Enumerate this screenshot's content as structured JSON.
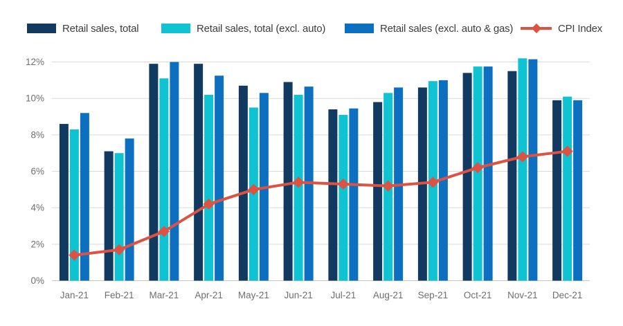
{
  "chart_data": {
    "type": "combo: grouped bar + line",
    "title": "",
    "xlabel": "",
    "ylabel": "",
    "unit": "percent",
    "grid": "horizontal",
    "legend_position": "top",
    "categories": [
      "Jan-21",
      "Feb-21",
      "Mar-21",
      "Apr-21",
      "May-21",
      "Jun-21",
      "Jul-21",
      "Aug-21",
      "Sep-21",
      "Oct-21",
      "Nov-21",
      "Dec-21"
    ],
    "series": [
      {
        "name": "Retail sales, total",
        "color": "#123a60",
        "values": [
          8.6,
          7.1,
          11.9,
          11.9,
          10.7,
          10.9,
          9.4,
          9.8,
          10.6,
          11.4,
          11.5,
          9.9
        ]
      },
      {
        "name": "Retail sales, total (excl. auto)",
        "color": "#10c3d3",
        "values": [
          8.3,
          7.0,
          11.1,
          10.2,
          9.5,
          10.2,
          9.1,
          10.3,
          10.95,
          11.75,
          12.2,
          10.1
        ]
      },
      {
        "name": "Retail sales (excl. auto & gas)",
        "color": "#0d6fc0",
        "values": [
          9.2,
          7.8,
          12.0,
          11.25,
          10.3,
          10.65,
          9.45,
          10.6,
          11.0,
          11.75,
          12.15,
          9.9
        ]
      }
    ],
    "line_series": {
      "name": "CPI Index",
      "color": "#dd5243",
      "marker": "diamond",
      "values": [
        1.4,
        1.7,
        2.7,
        4.2,
        5.0,
        5.4,
        5.3,
        5.2,
        5.4,
        6.2,
        6.8,
        7.1
      ]
    },
    "y_ticks": [
      "0%",
      "2%",
      "4%",
      "6%",
      "8%",
      "10%",
      "12%"
    ],
    "ylim": [
      0,
      12.6
    ]
  },
  "colors": {
    "background": "#ffffff",
    "gridline": "#d9d9d9",
    "baseline": "#c6c6c6",
    "tick_label": "#6e6e6e",
    "legend_text": "#3c3c3c"
  }
}
